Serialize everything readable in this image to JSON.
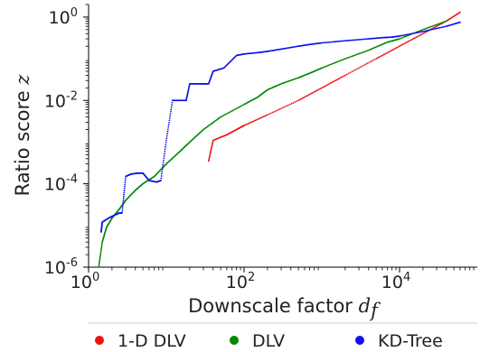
{
  "chart_data": {
    "type": "scatter",
    "xlabel": "Downscale factor",
    "xlabel_symbol": "d",
    "xlabel_subscript": "f",
    "ylabel": "Ratio score",
    "ylabel_symbol": "z",
    "xscale": "log",
    "yscale": "log",
    "xlim": [
      1,
      100000
    ],
    "ylim": [
      1e-06,
      2
    ],
    "x_ticks": [
      {
        "base": "10",
        "exp": "0"
      },
      {
        "base": "10",
        "exp": "2"
      },
      {
        "base": "10",
        "exp": "4"
      }
    ],
    "y_ticks": [
      {
        "base": "10",
        "exp": "-6"
      },
      {
        "base": "10",
        "exp": "-4"
      },
      {
        "base": "10",
        "exp": "-2"
      },
      {
        "base": "10",
        "exp": "0"
      }
    ],
    "grid": false,
    "legend_position": "bottom",
    "series": [
      {
        "name": "1-D DLV",
        "color": "#ee1111",
        "points": [
          [
            35,
            0.00035
          ],
          [
            40,
            0.0011
          ],
          [
            60,
            0.0015
          ],
          [
            80,
            0.002
          ],
          [
            100,
            0.0025
          ],
          [
            200,
            0.0045
          ],
          [
            500,
            0.01
          ],
          [
            1000,
            0.02
          ],
          [
            2000,
            0.04
          ],
          [
            5000,
            0.1
          ],
          [
            10000,
            0.2
          ],
          [
            20000,
            0.4
          ],
          [
            40000,
            0.8
          ],
          [
            60000,
            1.3
          ]
        ]
      },
      {
        "name": "DLV",
        "color": "#008800",
        "points": [
          [
            1.35,
            1e-06
          ],
          [
            1.5,
            4e-06
          ],
          [
            1.7,
            9e-06
          ],
          [
            2,
            1.5e-05
          ],
          [
            2.5,
            2.5e-05
          ],
          [
            3,
            4e-05
          ],
          [
            4,
            7e-05
          ],
          [
            5,
            0.0001
          ],
          [
            7,
            0.00015
          ],
          [
            10,
            0.0003
          ],
          [
            15,
            0.0006
          ],
          [
            20,
            0.001
          ],
          [
            30,
            0.002
          ],
          [
            50,
            0.004
          ],
          [
            100,
            0.008
          ],
          [
            150,
            0.012
          ],
          [
            200,
            0.018
          ],
          [
            300,
            0.025
          ],
          [
            500,
            0.035
          ],
          [
            700,
            0.045
          ],
          [
            1000,
            0.06
          ],
          [
            2000,
            0.1
          ],
          [
            4000,
            0.16
          ],
          [
            7000,
            0.25
          ],
          [
            10000,
            0.3
          ],
          [
            20000,
            0.5
          ],
          [
            40000,
            0.8
          ]
        ]
      },
      {
        "name": "KD-Tree",
        "color": "#1111ee",
        "points": [
          [
            1.45,
            7e-06
          ],
          [
            1.5,
            1.2e-05
          ],
          [
            1.8,
            1.5e-05
          ],
          [
            2.2,
            1.8e-05
          ],
          [
            2.5,
            2e-05
          ],
          [
            2.7,
            2e-05
          ],
          [
            3.0,
            0.00015
          ],
          [
            3.5,
            0.00017
          ],
          [
            4.2,
            0.00018
          ],
          [
            5,
            0.00018
          ],
          [
            6,
            0.00012
          ],
          [
            7.5,
            0.00011
          ],
          [
            8.5,
            0.00012
          ],
          [
            10,
            0.0011
          ],
          [
            12,
            0.01
          ],
          [
            15,
            0.01
          ],
          [
            18,
            0.01
          ],
          [
            20,
            0.025
          ],
          [
            25,
            0.025
          ],
          [
            30,
            0.025
          ],
          [
            35,
            0.025
          ],
          [
            40,
            0.05
          ],
          [
            55,
            0.06
          ],
          [
            80,
            0.12
          ],
          [
            100,
            0.13
          ],
          [
            150,
            0.14
          ],
          [
            200,
            0.15
          ],
          [
            300,
            0.17
          ],
          [
            500,
            0.2
          ],
          [
            700,
            0.22
          ],
          [
            1000,
            0.24
          ],
          [
            2000,
            0.27
          ],
          [
            4000,
            0.3
          ],
          [
            6000,
            0.32
          ],
          [
            8000,
            0.33
          ],
          [
            10000,
            0.35
          ],
          [
            20000,
            0.45
          ],
          [
            40000,
            0.6
          ],
          [
            60000,
            0.75
          ]
        ]
      }
    ]
  }
}
